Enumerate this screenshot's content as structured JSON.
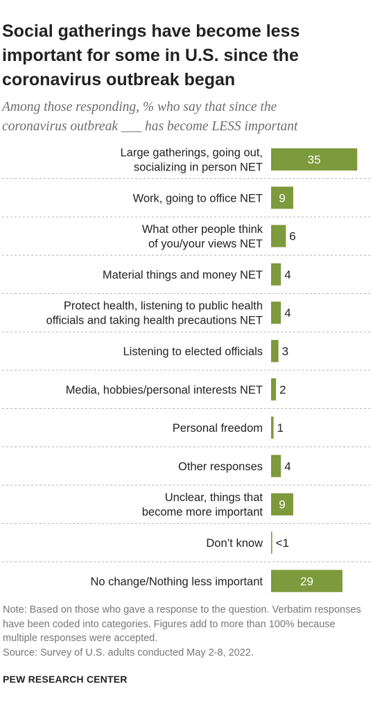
{
  "title": "Social gatherings have become less important for some in U.S. since the coronavirus outbreak began",
  "subtitle_line1": "Among those responding, % who say that since the",
  "subtitle_line2": "coronavirus outbreak ___ has become LESS important",
  "note": "Note: Based on those who gave a response to the question. Verbatim responses have been coded into categories. Figures add to more than 100% because multiple responses were accepted.",
  "source": "Source: Survey of U.S. adults conducted May 2-8, 2022.",
  "brand": "PEW RESEARCH CENTER",
  "colors": {
    "bar": "#7d9a3c",
    "divider": "#b5b5b5",
    "label": "#222222"
  },
  "chart_data": {
    "type": "bar",
    "orientation": "horizontal",
    "grid": false,
    "categories": [
      [
        "Large gatherings, going out,",
        "socializing in person NET"
      ],
      [
        "Work, going to office NET"
      ],
      [
        "What other people think",
        "of you/your views NET"
      ],
      [
        "Material things and money NET"
      ],
      [
        "Protect health, listening to public health",
        "officials and taking health precautions NET"
      ],
      [
        "Listening to elected officials"
      ],
      [
        "Media, hobbies/personal interests NET"
      ],
      [
        "Personal freedom"
      ],
      [
        "Other responses"
      ],
      [
        "Unclear, things that",
        "become more important"
      ],
      [
        "Don’t know"
      ],
      [
        "No change/Nothing less important"
      ]
    ],
    "values": [
      35,
      9,
      6,
      4,
      4,
      3,
      2,
      1,
      4,
      9,
      0.4,
      29
    ],
    "value_labels": [
      "35",
      "9",
      "6",
      "4",
      "4",
      "3",
      "2",
      "1",
      "4",
      "9",
      "<1",
      "29"
    ]
  }
}
